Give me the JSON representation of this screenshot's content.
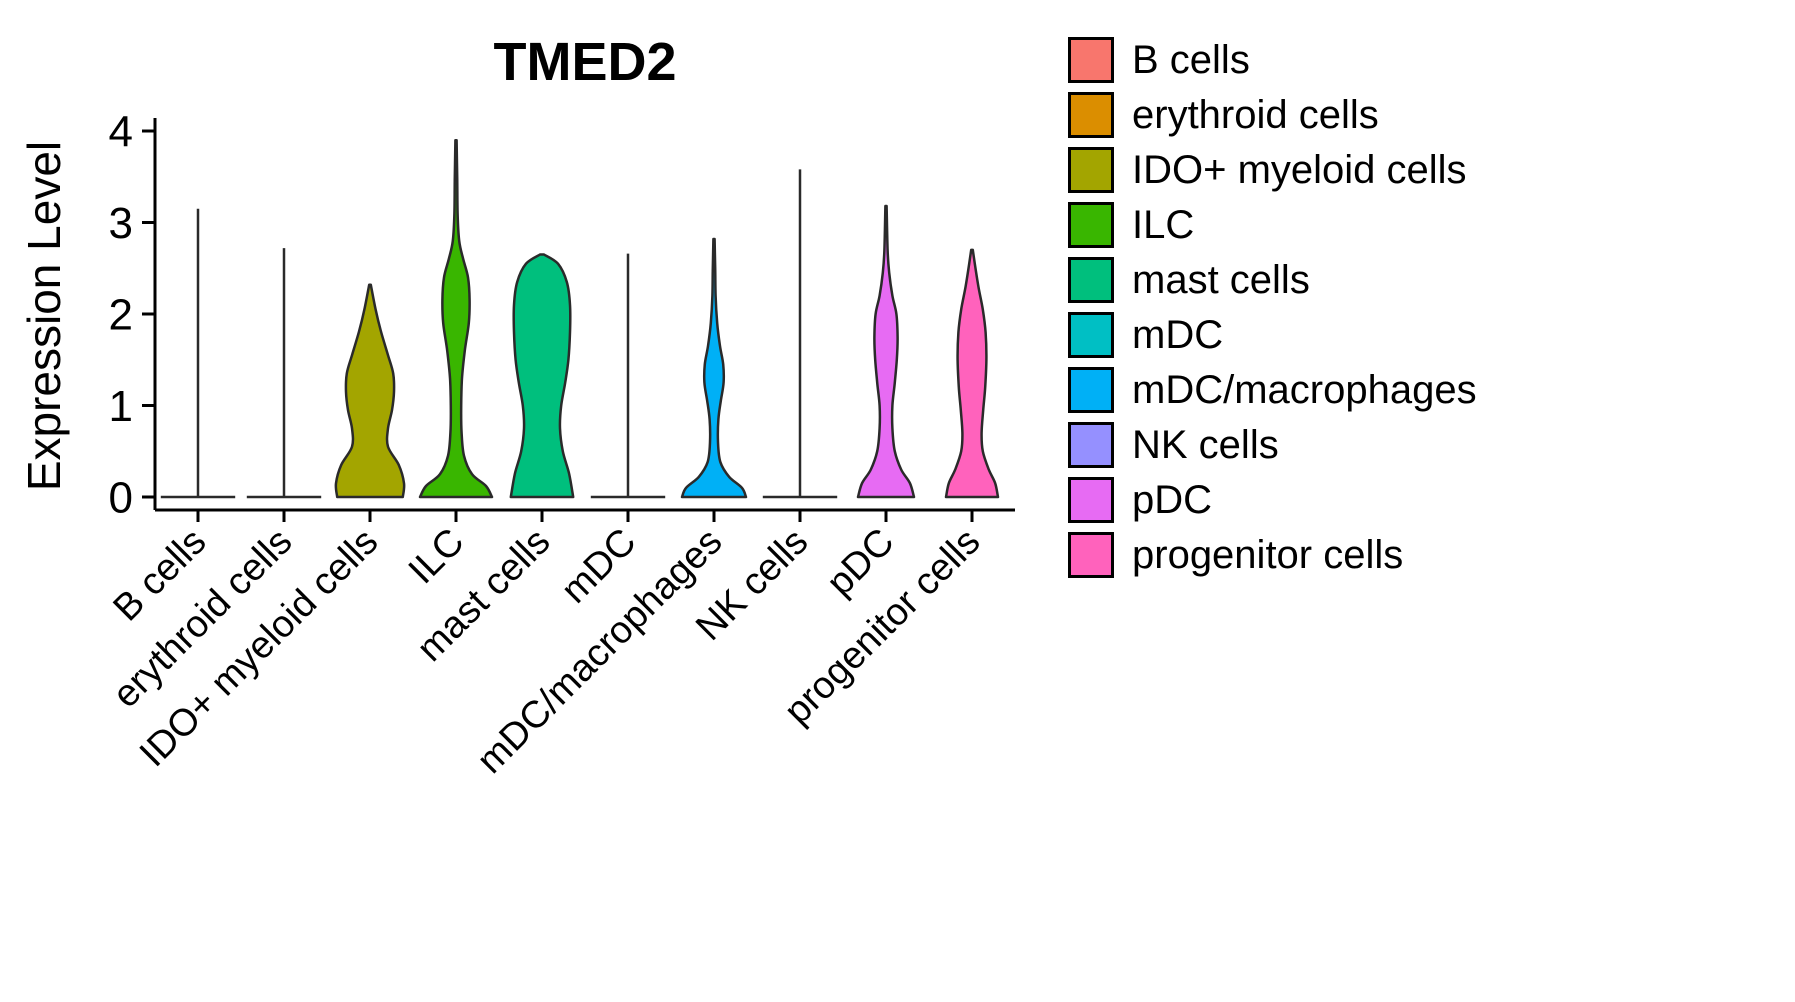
{
  "chart_data": {
    "type": "violin",
    "title": "TMED2",
    "xlabel": "",
    "ylabel": "Expression Level",
    "ylim": [
      0,
      4
    ],
    "yticks": [
      0,
      1,
      2,
      3,
      4
    ],
    "grid": false,
    "legend_position": "right",
    "categories": [
      "B cells",
      "erythroid cells",
      "IDO+ myeloid cells",
      "ILC",
      "mast cells",
      "mDC",
      "mDC/macrophages",
      "NK cells",
      "pDC",
      "progenitor cells"
    ],
    "colors": [
      "#F8766D",
      "#DB8E00",
      "#A3A500",
      "#39B600",
      "#00BF7D",
      "#00BFC4",
      "#00B0F6",
      "#9590FF",
      "#E76BF3",
      "#FF62BC"
    ],
    "series": [
      {
        "name": "B cells",
        "shape": "line",
        "max_expression": 3.15
      },
      {
        "name": "erythroid cells",
        "shape": "line",
        "max_expression": 2.72
      },
      {
        "name": "IDO+ myeloid cells",
        "shape": "violin",
        "max_expression": 2.32,
        "profile": [
          [
            0,
            0.82
          ],
          [
            0.15,
            0.85
          ],
          [
            0.35,
            0.72
          ],
          [
            0.55,
            0.45
          ],
          [
            0.75,
            0.45
          ],
          [
            0.95,
            0.55
          ],
          [
            1.15,
            0.6
          ],
          [
            1.35,
            0.58
          ],
          [
            1.55,
            0.45
          ],
          [
            1.8,
            0.28
          ],
          [
            2.05,
            0.14
          ],
          [
            2.32,
            0.02
          ]
        ]
      },
      {
        "name": "ILC",
        "shape": "violin",
        "max_expression": 3.9,
        "profile": [
          [
            0,
            0.9
          ],
          [
            0.12,
            0.75
          ],
          [
            0.25,
            0.4
          ],
          [
            0.45,
            0.2
          ],
          [
            0.7,
            0.14
          ],
          [
            1.0,
            0.13
          ],
          [
            1.3,
            0.15
          ],
          [
            1.6,
            0.22
          ],
          [
            1.9,
            0.32
          ],
          [
            2.15,
            0.34
          ],
          [
            2.4,
            0.3
          ],
          [
            2.6,
            0.18
          ],
          [
            2.8,
            0.08
          ],
          [
            3.1,
            0.04
          ],
          [
            3.5,
            0.03
          ],
          [
            3.9,
            0.015
          ]
        ]
      },
      {
        "name": "mast cells",
        "shape": "violin",
        "max_expression": 2.65,
        "profile": [
          [
            0,
            0.78
          ],
          [
            0.25,
            0.68
          ],
          [
            0.5,
            0.52
          ],
          [
            0.75,
            0.45
          ],
          [
            1.0,
            0.48
          ],
          [
            1.25,
            0.58
          ],
          [
            1.5,
            0.66
          ],
          [
            1.8,
            0.7
          ],
          [
            2.1,
            0.7
          ],
          [
            2.35,
            0.62
          ],
          [
            2.55,
            0.4
          ],
          [
            2.65,
            0.05
          ]
        ]
      },
      {
        "name": "mDC",
        "shape": "line",
        "max_expression": 2.66
      },
      {
        "name": "mDC/macrophages",
        "shape": "violin",
        "max_expression": 2.82,
        "profile": [
          [
            0,
            0.8
          ],
          [
            0.1,
            0.7
          ],
          [
            0.22,
            0.38
          ],
          [
            0.38,
            0.16
          ],
          [
            0.6,
            0.1
          ],
          [
            0.85,
            0.11
          ],
          [
            1.05,
            0.17
          ],
          [
            1.25,
            0.24
          ],
          [
            1.45,
            0.23
          ],
          [
            1.65,
            0.15
          ],
          [
            1.9,
            0.08
          ],
          [
            2.2,
            0.04
          ],
          [
            2.5,
            0.03
          ],
          [
            2.82,
            0.015
          ]
        ]
      },
      {
        "name": "NK cells",
        "shape": "line",
        "max_expression": 3.58
      },
      {
        "name": "pDC",
        "shape": "violin",
        "max_expression": 3.18,
        "profile": [
          [
            0,
            0.7
          ],
          [
            0.15,
            0.6
          ],
          [
            0.3,
            0.38
          ],
          [
            0.5,
            0.22
          ],
          [
            0.75,
            0.16
          ],
          [
            1.0,
            0.16
          ],
          [
            1.25,
            0.22
          ],
          [
            1.5,
            0.27
          ],
          [
            1.75,
            0.29
          ],
          [
            2.0,
            0.26
          ],
          [
            2.2,
            0.16
          ],
          [
            2.45,
            0.08
          ],
          [
            2.7,
            0.04
          ],
          [
            3.18,
            0.015
          ]
        ]
      },
      {
        "name": "progenitor cells",
        "shape": "violin",
        "max_expression": 2.7,
        "profile": [
          [
            0,
            0.65
          ],
          [
            0.15,
            0.58
          ],
          [
            0.3,
            0.42
          ],
          [
            0.5,
            0.27
          ],
          [
            0.7,
            0.24
          ],
          [
            0.95,
            0.28
          ],
          [
            1.2,
            0.33
          ],
          [
            1.5,
            0.36
          ],
          [
            1.8,
            0.34
          ],
          [
            2.05,
            0.27
          ],
          [
            2.3,
            0.16
          ],
          [
            2.55,
            0.07
          ],
          [
            2.7,
            0.02
          ]
        ]
      }
    ]
  }
}
